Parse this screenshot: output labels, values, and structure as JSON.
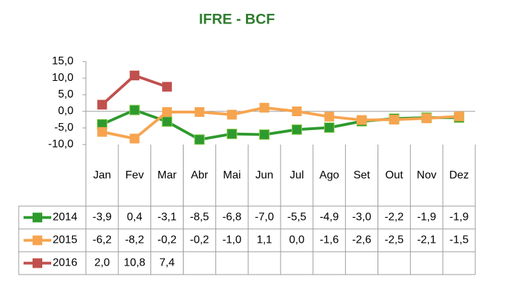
{
  "chart_data": {
    "type": "line",
    "title": "IFRE - BCF",
    "categories": [
      "Jan",
      "Fev",
      "Mar",
      "Abr",
      "Mai",
      "Jun",
      "Jul",
      "Ago",
      "Set",
      "Out",
      "Nov",
      "Dez"
    ],
    "series": [
      {
        "name": "2014",
        "color": "#2e9a2e",
        "values": [
          -3.9,
          0.4,
          -3.1,
          -8.5,
          -6.8,
          -7.0,
          -5.5,
          -4.9,
          -3.0,
          -2.2,
          -1.9,
          -1.9
        ],
        "value_labels": [
          "-3,9",
          "0,4",
          "-3,1",
          "-8,5",
          "-6,8",
          "-7,0",
          "-5,5",
          "-4,9",
          "-3,0",
          "-2,2",
          "-1,9",
          "-1,9"
        ]
      },
      {
        "name": "2015",
        "color": "#f7a44f",
        "values": [
          -6.2,
          -8.2,
          -0.2,
          -0.2,
          -1.0,
          1.1,
          0.0,
          -1.6,
          -2.6,
          -2.5,
          -2.1,
          -1.5
        ],
        "value_labels": [
          "-6,2",
          "-8,2",
          "-0,2",
          "-0,2",
          "-1,0",
          "1,1",
          "0,0",
          "-1,6",
          "-2,6",
          "-2,5",
          "-2,1",
          "-1,5"
        ]
      },
      {
        "name": "2016",
        "color": "#c0504d",
        "values": [
          2.0,
          10.8,
          7.4,
          null,
          null,
          null,
          null,
          null,
          null,
          null,
          null,
          null
        ],
        "value_labels": [
          "2,0",
          "10,8",
          "7,4",
          null,
          null,
          null,
          null,
          null,
          null,
          null,
          null,
          null
        ]
      }
    ],
    "ylim": [
      -10,
      15
    ],
    "yticks": [
      {
        "value": -10,
        "label": "-10,0"
      },
      {
        "value": -5,
        "label": "-5,0"
      },
      {
        "value": 0,
        "label": "0,0"
      },
      {
        "value": 5,
        "label": "5,0"
      },
      {
        "value": 10,
        "label": "10,0"
      },
      {
        "value": 15,
        "label": "15,0"
      }
    ],
    "grid": false
  }
}
